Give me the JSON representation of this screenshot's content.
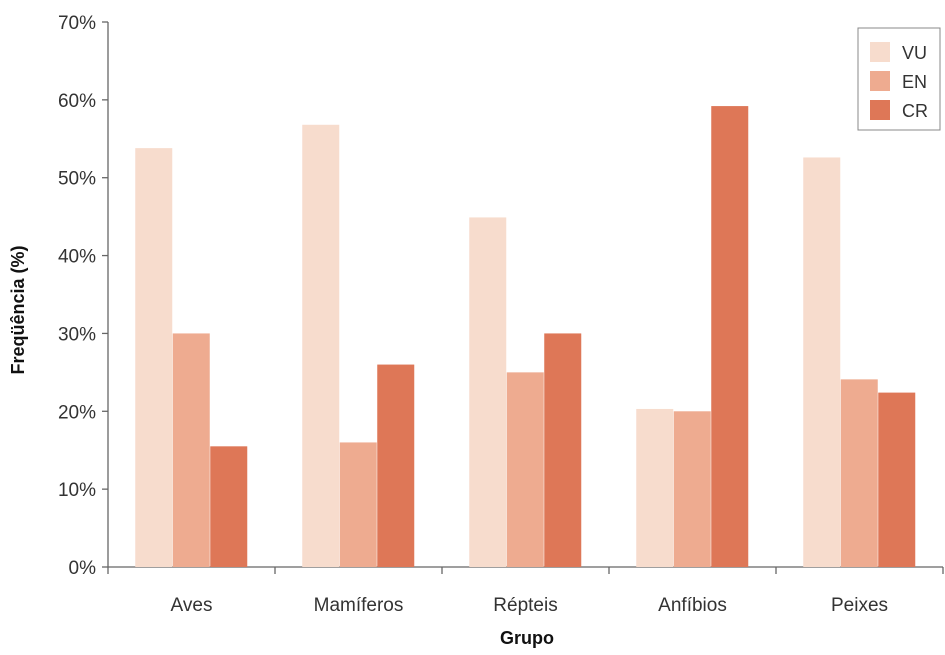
{
  "chart_data": {
    "type": "bar",
    "title": "",
    "xlabel": "Grupo",
    "ylabel": "Freqüência (%)",
    "ylim": [
      0,
      70
    ],
    "y_ticks": [
      "0%",
      "10%",
      "20%",
      "30%",
      "40%",
      "50%",
      "60%",
      "70%"
    ],
    "categories": [
      "Aves",
      "Mamíferos",
      "Répteis",
      "Anfíbios",
      "Peixes"
    ],
    "series": [
      {
        "name": "VU",
        "color": "#f7dccd",
        "values": [
          53.8,
          56.8,
          44.9,
          20.3,
          52.6
        ]
      },
      {
        "name": "EN",
        "color": "#eeab90",
        "values": [
          30.0,
          16.0,
          25.0,
          20.0,
          24.1
        ]
      },
      {
        "name": "CR",
        "color": "#de7757",
        "values": [
          15.5,
          26.0,
          30.0,
          59.2,
          22.4
        ]
      }
    ],
    "legend": "top-right",
    "grid": false
  }
}
